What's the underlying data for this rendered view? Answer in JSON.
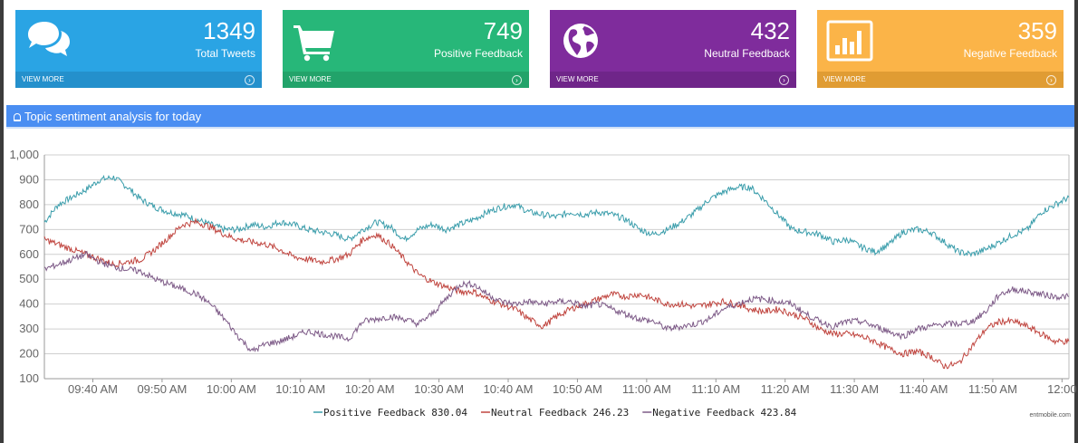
{
  "cards": [
    {
      "value": "1349",
      "label": "Total Tweets",
      "footer": "VIEW MORE",
      "icon": "speech-bubbles-icon"
    },
    {
      "value": "749",
      "label": "Positive Feedback",
      "footer": "VIEW MORE",
      "icon": "shopping-cart-icon"
    },
    {
      "value": "432",
      "label": "Neutral Feedback",
      "footer": "VIEW MORE",
      "icon": "globe-icon"
    },
    {
      "value": "359",
      "label": "Negative Feedback",
      "footer": "VIEW MORE",
      "icon": "bar-chart-icon"
    }
  ],
  "panel": {
    "title": "Topic sentiment analysis for today"
  },
  "credit": "entmobile.com",
  "colors": {
    "positive": "#3a9dab",
    "neutral": "#c0453f",
    "negative": "#7d5a87"
  },
  "chart_data": {
    "type": "line",
    "title": "",
    "xlabel": "",
    "ylabel": "",
    "ylim": [
      100,
      1000
    ],
    "yticks": [
      "100",
      "200",
      "300",
      "400",
      "500",
      "600",
      "700",
      "800",
      "900",
      "1,000"
    ],
    "xticks": [
      "09:40 AM",
      "09:50 AM",
      "10:00 AM",
      "10:10 AM",
      "10:20 AM",
      "10:30 AM",
      "10:40 AM",
      "10:50 AM",
      "11:00 AM",
      "11:10 AM",
      "11:20 AM",
      "11:30 AM",
      "11:40 AM",
      "11:50 AM",
      "12:00"
    ],
    "grid": true,
    "legend": "bottom",
    "x": [
      "09:33",
      "09:35",
      "09:37",
      "09:39",
      "09:41",
      "09:43",
      "09:45",
      "09:47",
      "09:49",
      "09:51",
      "09:53",
      "09:55",
      "09:57",
      "09:59",
      "10:01",
      "10:03",
      "10:05",
      "10:07",
      "10:09",
      "10:11",
      "10:13",
      "10:15",
      "10:17",
      "10:19",
      "10:21",
      "10:23",
      "10:25",
      "10:27",
      "10:29",
      "10:31",
      "10:33",
      "10:35",
      "10:37",
      "10:39",
      "10:41",
      "10:43",
      "10:45",
      "10:47",
      "10:49",
      "10:51",
      "10:53",
      "10:55",
      "10:57",
      "10:59",
      "11:01",
      "11:03",
      "11:05",
      "11:07",
      "11:09",
      "11:11",
      "11:13",
      "11:15",
      "11:17",
      "11:19",
      "11:21",
      "11:23",
      "11:25",
      "11:27",
      "11:29",
      "11:31",
      "11:33",
      "11:35",
      "11:37",
      "11:39",
      "11:41",
      "11:43",
      "11:45",
      "11:47",
      "11:49",
      "11:51",
      "11:53",
      "11:55",
      "11:57",
      "11:59",
      "12:01"
    ],
    "series": [
      {
        "name": "Positive Feedback",
        "last": "830.04",
        "values": [
          730,
          800,
          830,
          860,
          900,
          910,
          870,
          820,
          790,
          770,
          760,
          740,
          720,
          700,
          700,
          720,
          710,
          730,
          720,
          700,
          690,
          680,
          660,
          700,
          730,
          710,
          660,
          700,
          720,
          700,
          720,
          740,
          770,
          790,
          800,
          770,
          760,
          750,
          770,
          760,
          770,
          760,
          740,
          700,
          680,
          700,
          730,
          770,
          820,
          850,
          870,
          870,
          820,
          760,
          700,
          690,
          680,
          650,
          660,
          630,
          610,
          640,
          690,
          700,
          690,
          650,
          610,
          600,
          620,
          650,
          680,
          700,
          770,
          800,
          830
        ]
      },
      {
        "name": "Neutral Feedback",
        "last": "246.23",
        "values": [
          660,
          640,
          620,
          600,
          580,
          560,
          570,
          580,
          620,
          670,
          720,
          730,
          710,
          680,
          660,
          650,
          640,
          620,
          590,
          580,
          570,
          580,
          600,
          660,
          680,
          640,
          580,
          520,
          490,
          470,
          450,
          450,
          420,
          400,
          380,
          340,
          310,
          350,
          380,
          400,
          420,
          440,
          430,
          440,
          420,
          400,
          400,
          390,
          400,
          410,
          400,
          380,
          370,
          380,
          360,
          340,
          300,
          280,
          280,
          270,
          250,
          220,
          200,
          210,
          190,
          150,
          160,
          230,
          300,
          330,
          330,
          310,
          280,
          250,
          250
        ]
      },
      {
        "name": "Negative Feedback",
        "last": "423.84",
        "values": [
          540,
          560,
          580,
          600,
          570,
          550,
          540,
          530,
          500,
          480,
          460,
          440,
          400,
          340,
          270,
          210,
          240,
          250,
          270,
          290,
          280,
          270,
          260,
          330,
          340,
          350,
          340,
          320,
          360,
          420,
          480,
          480,
          440,
          410,
          400,
          410,
          400,
          410,
          410,
          390,
          400,
          380,
          360,
          340,
          330,
          300,
          310,
          320,
          340,
          380,
          400,
          420,
          420,
          410,
          400,
          360,
          330,
          310,
          330,
          330,
          310,
          290,
          270,
          300,
          310,
          320,
          320,
          330,
          370,
          440,
          460,
          450,
          440,
          430,
          430
        ]
      }
    ]
  }
}
